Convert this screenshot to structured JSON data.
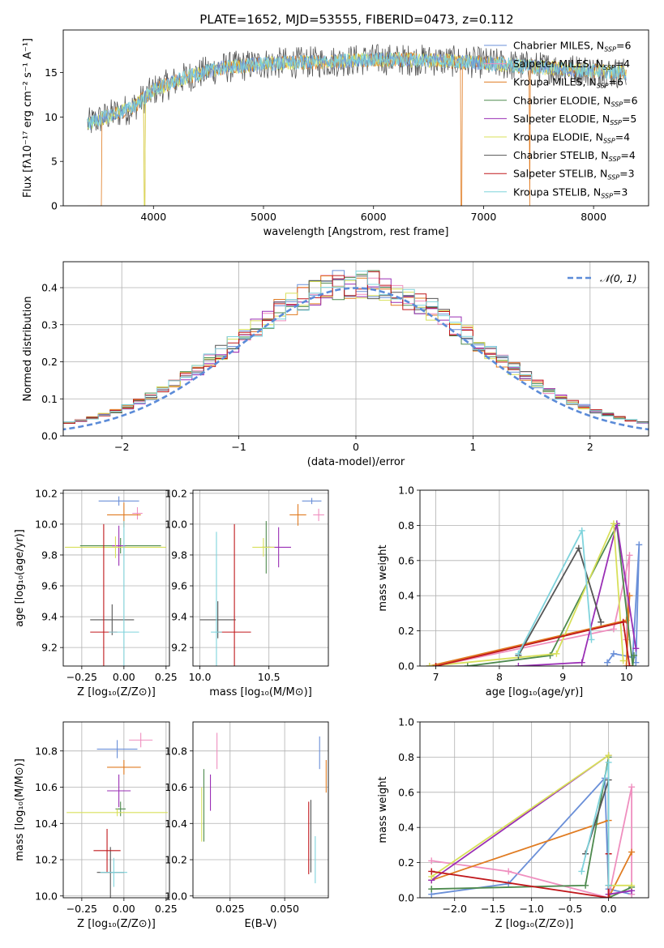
{
  "title": "PLATE=1652, MJD=53555, FIBERID=0473, z=0.112",
  "colors": {
    "Chabrier MILES": "#6a8fd8",
    "Salpeter MILES": "#ef8fbf",
    "Kroupa MILES": "#e07b21",
    "Chabrier ELODIE": "#4e8a4e",
    "Salpeter ELODIE": "#9a2fb5",
    "Kroupa ELODIE": "#d8e05a",
    "Chabrier STELIB": "#555555",
    "Salpeter STELIB": "#c0181c",
    "Kroupa STELIB": "#7fd3dc"
  },
  "chart_data": [
    {
      "id": "spectrum",
      "type": "line",
      "xlabel": "wavelength [Angstrom, rest frame]",
      "ylabel": "Flux [fλ10⁻¹⁷ erg cm⁻² s⁻¹ A⁻¹]",
      "xlim": [
        3180,
        8500
      ],
      "ylim": [
        0,
        19.8
      ],
      "xticks": [
        4000,
        5000,
        6000,
        7000,
        8000
      ],
      "yticks": [
        0,
        5,
        10,
        15
      ],
      "legend_position": "top-right",
      "legend": [
        {
          "model": "Chabrier MILES",
          "n": "6"
        },
        {
          "model": "Salpeter MILES",
          "n": "4"
        },
        {
          "model": "Kroupa MILES",
          "n": "6"
        },
        {
          "model": "Chabrier ELODIE",
          "n": "6"
        },
        {
          "model": "Salpeter ELODIE",
          "n": "5"
        },
        {
          "model": "Kroupa ELODIE",
          "n": "4"
        },
        {
          "model": "Chabrier STELIB",
          "n": "4"
        },
        {
          "model": "Salpeter STELIB",
          "n": "3"
        },
        {
          "model": "Kroupa STELIB",
          "n": "3"
        }
      ],
      "continuum": [
        [
          3400,
          9.2
        ],
        [
          3600,
          10.2
        ],
        [
          3800,
          11.0
        ],
        [
          4000,
          13.0
        ],
        [
          4300,
          14.5
        ],
        [
          4600,
          15.5
        ],
        [
          5000,
          16.0
        ],
        [
          5500,
          16.2
        ],
        [
          6000,
          16.5
        ],
        [
          6500,
          16.4
        ],
        [
          7000,
          16.1
        ],
        [
          7500,
          15.6
        ],
        [
          8000,
          15.2
        ],
        [
          8300,
          14.9
        ]
      ],
      "noise_amplitude": 1.2,
      "drops": [
        3520,
        3920,
        6800,
        7420
      ]
    },
    {
      "id": "residuals",
      "type": "histogram",
      "xlabel": "(data-model)/error",
      "ylabel": "Normed distribution",
      "xlim": [
        -2.5,
        2.5
      ],
      "ylim": [
        0,
        0.47
      ],
      "xticks": [
        -2,
        -1,
        0,
        1,
        2
      ],
      "yticks": [
        0.0,
        0.1,
        0.2,
        0.3,
        0.4
      ],
      "grid": true,
      "bin_width": 0.1,
      "legend_position": "top-right",
      "gaussian_label": "𝒩(0, 1)"
    },
    {
      "id": "age_vs_Z",
      "type": "errorbar",
      "xlabel": "Z [log₁₀(Z/Z⊙)]",
      "ylabel": "age  [log₁₀(age/yr)]",
      "xlim": [
        -0.36,
        0.27
      ],
      "ylim": [
        9.08,
        10.22
      ],
      "xticks": [
        -0.25,
        0.0,
        0.25
      ],
      "yticks": [
        9.2,
        9.4,
        9.6,
        9.8,
        10.0,
        10.2
      ],
      "grid": true,
      "points": [
        {
          "model": "Chabrier MILES",
          "x": -0.03,
          "xerr": 0.12,
          "y": 10.15,
          "yerr": 0.03
        },
        {
          "model": "Salpeter MILES",
          "x": 0.08,
          "xerr": 0.03,
          "y": 10.07,
          "yerr": 0.04
        },
        {
          "model": "Kroupa MILES",
          "x": 0.0,
          "xerr": 0.1,
          "y": 10.06,
          "yerr": 0.08
        },
        {
          "model": "Chabrier ELODIE",
          "x": -0.02,
          "xerr": 0.24,
          "y": 9.86,
          "yerr": 0.05
        },
        {
          "model": "Salpeter ELODIE",
          "x": -0.03,
          "xerr": 0.04,
          "y": 9.86,
          "yerr": 0.13
        },
        {
          "model": "Kroupa ELODIE",
          "x": -0.05,
          "xerr": 0.3,
          "y": 9.85,
          "yerr": 0.07
        },
        {
          "model": "Chabrier STELIB",
          "x": -0.07,
          "xerr": 0.13,
          "y": 9.38,
          "yerr": 0.1
        },
        {
          "model": "Salpeter STELIB",
          "x": -0.12,
          "xerr": 0.08,
          "y": 9.3,
          "yerr": 0.7
        },
        {
          "model": "Kroupa STELIB",
          "x": 0.0,
          "xerr": 0.09,
          "y": 9.3,
          "yerr": 0.72
        }
      ]
    },
    {
      "id": "age_vs_mass",
      "type": "errorbar",
      "xlabel": "mass [log₁₀(M/M⊙)]",
      "ylabel": "",
      "xlim": [
        9.95,
        10.93
      ],
      "ylim": [
        9.08,
        10.22
      ],
      "xticks": [
        10.0,
        10.5
      ],
      "yticks": [
        9.2,
        9.4,
        9.6,
        9.8,
        10.0,
        10.2
      ],
      "grid": true,
      "points": [
        {
          "model": "Chabrier MILES",
          "x": 10.81,
          "xerr": 0.07,
          "y": 10.15,
          "yerr": 0.02
        },
        {
          "model": "Salpeter MILES",
          "x": 10.86,
          "xerr": 0.04,
          "y": 10.06,
          "yerr": 0.04
        },
        {
          "model": "Kroupa MILES",
          "x": 10.71,
          "xerr": 0.06,
          "y": 10.06,
          "yerr": 0.07
        },
        {
          "model": "Chabrier ELODIE",
          "x": 10.48,
          "xerr": 0.03,
          "y": 9.85,
          "yerr": 0.17
        },
        {
          "model": "Salpeter ELODIE",
          "x": 10.57,
          "xerr": 0.09,
          "y": 9.85,
          "yerr": 0.13
        },
        {
          "model": "Kroupa ELODIE",
          "x": 10.46,
          "xerr": 0.08,
          "y": 9.85,
          "yerr": 0.06
        },
        {
          "model": "Chabrier STELIB",
          "x": 10.13,
          "xerr": 0.13,
          "y": 9.38,
          "yerr": 0.12
        },
        {
          "model": "Salpeter STELIB",
          "x": 10.25,
          "xerr": 0.12,
          "y": 9.3,
          "yerr": 0.7
        },
        {
          "model": "Kroupa STELIB",
          "x": 10.12,
          "xerr": 0.04,
          "y": 9.3,
          "yerr": 0.65
        }
      ]
    },
    {
      "id": "weight_vs_age",
      "type": "line",
      "xlabel": "age  [log₁₀(age/yr)]",
      "ylabel": "mass weight",
      "xlim": [
        6.75,
        10.35
      ],
      "ylim": [
        0,
        1.0
      ],
      "xticks": [
        7,
        8,
        9,
        10
      ],
      "yticks": [
        0.0,
        0.2,
        0.4,
        0.6,
        0.8,
        1.0
      ],
      "grid": true,
      "series": [
        {
          "model": "Chabrier MILES",
          "points": [
            [
              9.7,
              0.02
            ],
            [
              9.8,
              0.07
            ],
            [
              10.1,
              0.05
            ],
            [
              10.2,
              0.69
            ],
            [
              10.15,
              0.02
            ]
          ]
        },
        {
          "model": "Salpeter MILES",
          "points": [
            [
              7.0,
              0.0
            ],
            [
              9.8,
              0.21
            ],
            [
              10.05,
              0.63
            ],
            [
              10.0,
              0.15
            ]
          ]
        },
        {
          "model": "Kroupa MILES",
          "points": [
            [
              6.9,
              0.0
            ],
            [
              10.0,
              0.26
            ],
            [
              10.05,
              0.4
            ],
            [
              10.0,
              0.0
            ]
          ]
        },
        {
          "model": "Chabrier ELODIE",
          "points": [
            [
              7.5,
              0.0
            ],
            [
              8.8,
              0.06
            ],
            [
              9.85,
              0.8
            ],
            [
              10.1,
              0.0
            ],
            [
              10.12,
              0.06
            ]
          ]
        },
        {
          "model": "Salpeter ELODIE",
          "points": [
            [
              8.3,
              0.0
            ],
            [
              9.3,
              0.02
            ],
            [
              9.85,
              0.81
            ],
            [
              10.15,
              0.1
            ]
          ]
        },
        {
          "model": "Kroupa ELODIE",
          "points": [
            [
              6.9,
              0.0
            ],
            [
              8.9,
              0.07
            ],
            [
              9.8,
              0.81
            ],
            [
              9.95,
              0.03
            ]
          ]
        },
        {
          "model": "Chabrier STELIB",
          "points": [
            [
              8.3,
              0.06
            ],
            [
              9.25,
              0.67
            ],
            [
              9.6,
              0.25
            ]
          ]
        },
        {
          "model": "Salpeter STELIB",
          "points": [
            [
              7.0,
              0.0
            ],
            [
              9.95,
              0.25
            ],
            [
              10.05,
              0.0
            ]
          ]
        },
        {
          "model": "Kroupa STELIB",
          "points": [
            [
              8.3,
              0.07
            ],
            [
              9.3,
              0.77
            ],
            [
              9.45,
              0.15
            ]
          ]
        }
      ]
    },
    {
      "id": "mass_vs_Z",
      "type": "errorbar",
      "xlabel": "Z [log₁₀(Z/Z⊙)]",
      "ylabel": "mass [log₁₀(M/M⊙)]",
      "xlim": [
        -0.36,
        0.27
      ],
      "ylim": [
        9.99,
        10.96
      ],
      "xticks": [
        -0.25,
        0.0,
        0.25
      ],
      "yticks": [
        10.0,
        10.2,
        10.4,
        10.6,
        10.8
      ],
      "grid": true,
      "points": [
        {
          "model": "Chabrier MILES",
          "x": -0.04,
          "xerr": 0.12,
          "y": 10.81,
          "yerr": 0.05
        },
        {
          "model": "Salpeter MILES",
          "x": 0.1,
          "xerr": 0.07,
          "y": 10.86,
          "yerr": 0.04
        },
        {
          "model": "Kroupa MILES",
          "x": 0.0,
          "xerr": 0.1,
          "y": 10.71,
          "yerr": 0.04
        },
        {
          "model": "Chabrier ELODIE",
          "x": -0.02,
          "xerr": 0.03,
          "y": 10.48,
          "yerr": 0.04
        },
        {
          "model": "Salpeter ELODIE",
          "x": -0.03,
          "xerr": 0.07,
          "y": 10.58,
          "yerr": 0.09
        },
        {
          "model": "Kroupa ELODIE",
          "x": -0.04,
          "xerr": 0.3,
          "y": 10.46,
          "yerr": 0.02
        },
        {
          "model": "Chabrier STELIB",
          "x": -0.08,
          "xerr": 0.08,
          "y": 10.13,
          "yerr": 0.14
        },
        {
          "model": "Salpeter STELIB",
          "x": -0.1,
          "xerr": 0.08,
          "y": 10.25,
          "yerr": 0.12
        },
        {
          "model": "Kroupa STELIB",
          "x": -0.06,
          "xerr": 0.08,
          "y": 10.13,
          "yerr": 0.08
        }
      ]
    },
    {
      "id": "mass_vs_ebv",
      "type": "errorbar",
      "xlabel": "E(B-V)",
      "ylabel": "",
      "xlim": [
        0.008,
        0.07
      ],
      "ylim": [
        9.99,
        10.96
      ],
      "xticks": [
        0.025,
        0.05
      ],
      "yticks": [
        10.0,
        10.2,
        10.4,
        10.6,
        10.8
      ],
      "grid": true,
      "points": [
        {
          "model": "Chabrier MILES",
          "x": 0.066,
          "y": 10.79,
          "yerr": 0.09
        },
        {
          "model": "Salpeter MILES",
          "x": 0.019,
          "y": 10.8,
          "yerr": 0.1
        },
        {
          "model": "Kroupa MILES",
          "x": 0.069,
          "y": 10.66,
          "yerr": 0.09
        },
        {
          "model": "Chabrier ELODIE",
          "x": 0.013,
          "y": 10.5,
          "yerr": 0.2
        },
        {
          "model": "Salpeter ELODIE",
          "x": 0.016,
          "y": 10.57,
          "yerr": 0.1
        },
        {
          "model": "Kroupa ELODIE",
          "x": 0.012,
          "y": 10.45,
          "yerr": 0.15
        },
        {
          "model": "Chabrier STELIB",
          "x": 0.062,
          "y": 10.33,
          "yerr": 0.2
        },
        {
          "model": "Salpeter STELIB",
          "x": 0.061,
          "y": 10.32,
          "yerr": 0.2
        },
        {
          "model": "Kroupa STELIB",
          "x": 0.064,
          "y": 10.2,
          "yerr": 0.13
        }
      ]
    },
    {
      "id": "weight_vs_Z",
      "type": "line",
      "xlabel": "Z [log₁₀(Z/Z⊙)]",
      "ylabel": "mass weight",
      "xlim": [
        -2.45,
        0.52
      ],
      "ylim": [
        0,
        1.0
      ],
      "xticks": [
        -2.0,
        -1.5,
        -1.0,
        -0.5,
        0.0
      ],
      "yticks": [
        0.0,
        0.2,
        0.4,
        0.6,
        0.8,
        1.0
      ],
      "grid": true,
      "series": [
        {
          "model": "Chabrier MILES",
          "points": [
            [
              -2.3,
              0.02
            ],
            [
              -1.3,
              0.08
            ],
            [
              -0.05,
              0.68
            ],
            [
              0.0,
              0.05
            ],
            [
              0.3,
              0.02
            ]
          ]
        },
        {
          "model": "Salpeter MILES",
          "points": [
            [
              -2.3,
              0.21
            ],
            [
              -1.3,
              0.15
            ],
            [
              0.0,
              0.0
            ],
            [
              0.3,
              0.63
            ],
            [
              0.3,
              0.02
            ]
          ]
        },
        {
          "model": "Kroupa MILES",
          "points": [
            [
              -2.3,
              0.1
            ],
            [
              0.0,
              0.44
            ],
            [
              0.0,
              0.0
            ],
            [
              0.3,
              0.26
            ]
          ]
        },
        {
          "model": "Chabrier ELODIE",
          "points": [
            [
              -2.3,
              0.05
            ],
            [
              -0.3,
              0.07
            ],
            [
              0.0,
              0.8
            ],
            [
              0.0,
              0.0
            ],
            [
              0.3,
              0.06
            ]
          ]
        },
        {
          "model": "Salpeter ELODIE",
          "points": [
            [
              -2.3,
              0.1
            ],
            [
              0.0,
              0.81
            ],
            [
              0.0,
              0.02
            ],
            [
              0.3,
              0.04
            ]
          ]
        },
        {
          "model": "Kroupa ELODIE",
          "points": [
            [
              -2.3,
              0.12
            ],
            [
              0.0,
              0.81
            ],
            [
              0.0,
              0.07
            ],
            [
              0.3,
              0.07
            ]
          ]
        },
        {
          "model": "Chabrier STELIB",
          "points": [
            [
              -0.3,
              0.25
            ],
            [
              0.0,
              0.67
            ],
            [
              0.0,
              0.07
            ]
          ]
        },
        {
          "model": "Salpeter STELIB",
          "points": [
            [
              -2.3,
              0.15
            ],
            [
              0.0,
              0.0
            ],
            [
              0.0,
              0.25
            ]
          ]
        },
        {
          "model": "Kroupa STELIB",
          "points": [
            [
              -0.35,
              0.15
            ],
            [
              0.0,
              0.77
            ],
            [
              0.0,
              0.07
            ]
          ]
        }
      ]
    }
  ]
}
